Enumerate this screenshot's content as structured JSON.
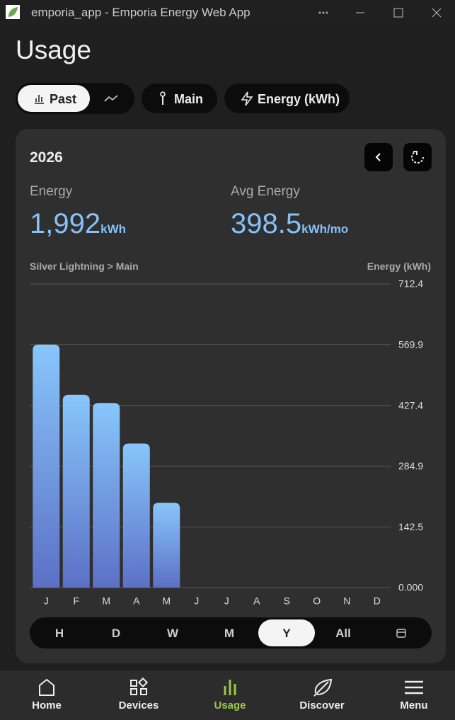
{
  "window": {
    "title": "emporia_app - Emporia Energy Web App"
  },
  "header": {
    "title": "Usage"
  },
  "toolbar": {
    "past": "Past",
    "main": "Main",
    "energy": "Energy (kWh)"
  },
  "summary": {
    "energy_label": "Energy",
    "energy_value": "1,992",
    "energy_unit": "kWh",
    "avg_label": "Avg Energy",
    "avg_value": "398.5",
    "avg_unit": "kWh/mo"
  },
  "chart_data": {
    "type": "bar",
    "title": "2026",
    "subtitle": "Silver Lightning > Main",
    "y_label": "Energy (kWh)",
    "categories": [
      "J",
      "F",
      "M",
      "A",
      "M",
      "J",
      "J",
      "A",
      "S",
      "O",
      "N",
      "D"
    ],
    "values": [
      570,
      452,
      433,
      338,
      199,
      null,
      null,
      null,
      null,
      null,
      null,
      null
    ],
    "color": "#88c6fb",
    "ylim": [
      0,
      712.4
    ],
    "yticks": [
      {
        "value": 0,
        "label": "0.000"
      },
      142.5,
      284.9,
      427.4,
      569.9,
      712.4
    ],
    "grid": true
  },
  "range_tabs": [
    "H",
    "D",
    "W",
    "M",
    "Y",
    "All"
  ],
  "nav": [
    "Home",
    "Devices",
    "Usage",
    "Discover",
    "Menu"
  ]
}
